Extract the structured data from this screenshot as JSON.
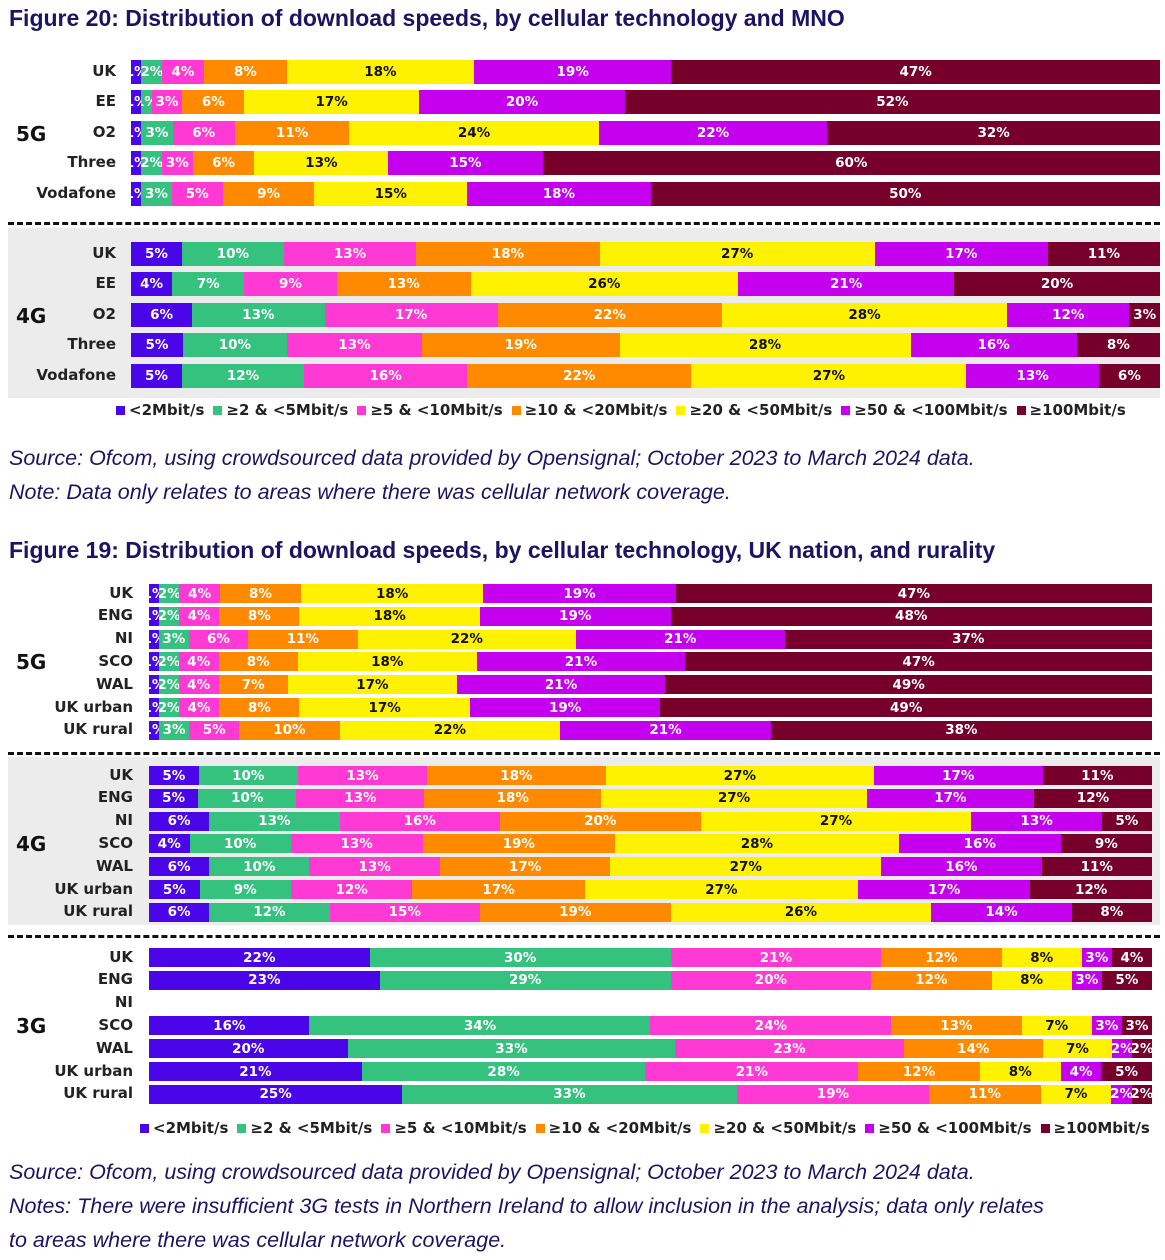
{
  "colors": [
    "#4a06e8",
    "#35c27f",
    "#ff3ad4",
    "#ff8a00",
    "#fff200",
    "#c400ee",
    "#76002a"
  ],
  "label_text_colors": [
    "#fff",
    "#fff",
    "#fff",
    "#fff",
    "#111",
    "#fff",
    "#fff"
  ],
  "legend": [
    "<2Mbit/s",
    "≥2 & <5Mbit/s",
    "≥5 & <10Mbit/s",
    "≥10 & <20Mbit/s",
    "≥20 & <50Mbit/s",
    "≥50 & <100Mbit/s",
    "≥100Mbit/s"
  ],
  "figure20": {
    "title": "Figure 20: Distribution of download speeds, by cellular technology and MNO",
    "source": "Source: Ofcom, using crowdsourced data provided by Opensignal; October 2023 to March 2024 data.",
    "note": "Note: Data only relates to areas where there was cellular network coverage."
  },
  "figure19": {
    "title": "Figure 19: Distribution of download speeds, by cellular technology, UK nation, and rurality",
    "source": "Source: Ofcom, using crowdsourced data provided by Opensignal; October 2023 to March 2024 data.",
    "note1": "Notes: There were insufficient 3G tests in Northern Ireland to allow inclusion in the analysis; data only relates",
    "note2": "to areas where there was cellular network coverage."
  },
  "chart_data": [
    {
      "type": "bar",
      "orientation": "horizontal-stacked-100",
      "title": "Figure 20: Distribution of download speeds, by cellular technology and MNO",
      "series_names": [
        "<2Mbit/s",
        "≥2 & <5Mbit/s",
        "≥5 & <10Mbit/s",
        "≥10 & <20Mbit/s",
        "≥20 & <50Mbit/s",
        "≥50 & <100Mbit/s",
        "≥100Mbit/s"
      ],
      "legend_position": "bottom",
      "unit": "%",
      "groups": [
        {
          "name": "5G",
          "rows": [
            {
              "category": "UK",
              "values": [
                1,
                2,
                4,
                8,
                18,
                19,
                47
              ]
            },
            {
              "category": "EE",
              "values": [
                1,
                1,
                3,
                6,
                17,
                20,
                52
              ]
            },
            {
              "category": "O2",
              "values": [
                1,
                3,
                6,
                11,
                24,
                22,
                32
              ]
            },
            {
              "category": "Three",
              "values": [
                1,
                2,
                3,
                6,
                13,
                15,
                60
              ]
            },
            {
              "category": "Vodafone",
              "values": [
                1,
                3,
                5,
                9,
                15,
                18,
                50
              ]
            }
          ]
        },
        {
          "name": "4G",
          "rows": [
            {
              "category": "UK",
              "values": [
                5,
                10,
                13,
                18,
                27,
                17,
                11
              ]
            },
            {
              "category": "EE",
              "values": [
                4,
                7,
                9,
                13,
                26,
                21,
                20
              ]
            },
            {
              "category": "O2",
              "values": [
                6,
                13,
                17,
                22,
                28,
                12,
                3
              ]
            },
            {
              "category": "Three",
              "values": [
                5,
                10,
                13,
                19,
                28,
                16,
                8
              ]
            },
            {
              "category": "Vodafone",
              "values": [
                5,
                12,
                16,
                22,
                27,
                13,
                6
              ]
            }
          ]
        }
      ]
    },
    {
      "type": "bar",
      "orientation": "horizontal-stacked-100",
      "title": "Figure 19: Distribution of download speeds, by cellular technology, UK nation, and rurality",
      "series_names": [
        "<2Mbit/s",
        "≥2 & <5Mbit/s",
        "≥5 & <10Mbit/s",
        "≥10 & <20Mbit/s",
        "≥20 & <50Mbit/s",
        "≥50 & <100Mbit/s",
        "≥100Mbit/s"
      ],
      "legend_position": "bottom",
      "unit": "%",
      "groups": [
        {
          "name": "5G",
          "rows": [
            {
              "category": "UK",
              "values": [
                1,
                2,
                4,
                8,
                18,
                19,
                47
              ]
            },
            {
              "category": "ENG",
              "values": [
                1,
                2,
                4,
                8,
                18,
                19,
                48
              ]
            },
            {
              "category": "NI",
              "values": [
                1,
                3,
                6,
                11,
                22,
                21,
                37
              ]
            },
            {
              "category": "SCO",
              "values": [
                1,
                2,
                4,
                8,
                18,
                21,
                47
              ]
            },
            {
              "category": "WAL",
              "values": [
                1,
                2,
                4,
                7,
                17,
                21,
                49
              ]
            },
            {
              "category": "UK urban",
              "values": [
                1,
                2,
                4,
                8,
                17,
                19,
                49
              ]
            },
            {
              "category": "UK rural",
              "values": [
                1,
                3,
                5,
                10,
                22,
                21,
                38
              ]
            }
          ]
        },
        {
          "name": "4G",
          "rows": [
            {
              "category": "UK",
              "values": [
                5,
                10,
                13,
                18,
                27,
                17,
                11
              ]
            },
            {
              "category": "ENG",
              "values": [
                5,
                10,
                13,
                18,
                27,
                17,
                12
              ]
            },
            {
              "category": "NI",
              "values": [
                6,
                13,
                16,
                20,
                27,
                13,
                5
              ]
            },
            {
              "category": "SCO",
              "values": [
                4,
                10,
                13,
                19,
                28,
                16,
                9
              ]
            },
            {
              "category": "WAL",
              "values": [
                6,
                10,
                13,
                17,
                27,
                16,
                11
              ]
            },
            {
              "category": "UK urban",
              "values": [
                5,
                9,
                12,
                17,
                27,
                17,
                12
              ]
            },
            {
              "category": "UK rural",
              "values": [
                6,
                12,
                15,
                19,
                26,
                14,
                8
              ]
            }
          ]
        },
        {
          "name": "3G",
          "rows": [
            {
              "category": "UK",
              "values": [
                22,
                30,
                21,
                12,
                8,
                3,
                4
              ]
            },
            {
              "category": "ENG",
              "values": [
                23,
                29,
                20,
                12,
                8,
                3,
                5
              ]
            },
            {
              "category": "NI",
              "values": null
            },
            {
              "category": "SCO",
              "values": [
                16,
                34,
                24,
                13,
                7,
                3,
                3
              ]
            },
            {
              "category": "WAL",
              "values": [
                20,
                33,
                23,
                14,
                7,
                2,
                2
              ]
            },
            {
              "category": "UK urban",
              "values": [
                21,
                28,
                21,
                12,
                8,
                4,
                5
              ]
            },
            {
              "category": "UK rural",
              "values": [
                25,
                33,
                19,
                11,
                7,
                2,
                2
              ]
            }
          ]
        }
      ]
    }
  ]
}
